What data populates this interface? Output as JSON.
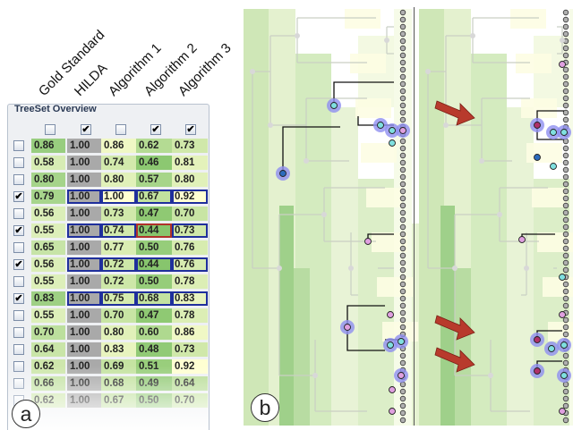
{
  "column_headers": [
    "Gold Standard",
    "HILDA",
    "Algorithm 1",
    "Algorithm 2",
    "Algorithm 3"
  ],
  "panel_title": "TreeSet Overview",
  "header_checks": [
    false,
    true,
    false,
    true,
    true
  ],
  "rows": [
    {
      "checked": false,
      "values": [
        "0.86",
        "1.00",
        "0.86",
        "0.62",
        "0.73"
      ]
    },
    {
      "checked": false,
      "values": [
        "0.58",
        "1.00",
        "0.74",
        "0.46",
        "0.81"
      ]
    },
    {
      "checked": false,
      "values": [
        "0.80",
        "1.00",
        "0.80",
        "0.57",
        "0.80"
      ]
    },
    {
      "checked": true,
      "values": [
        "0.79",
        "1.00",
        "1.00",
        "0.67",
        "0.92"
      ]
    },
    {
      "checked": false,
      "values": [
        "0.56",
        "1.00",
        "0.73",
        "0.47",
        "0.70"
      ]
    },
    {
      "checked": true,
      "values": [
        "0.55",
        "1.00",
        "0.74",
        "0.44",
        "0.73"
      ]
    },
    {
      "checked": false,
      "values": [
        "0.65",
        "1.00",
        "0.77",
        "0.50",
        "0.76"
      ]
    },
    {
      "checked": true,
      "values": [
        "0.56",
        "1.00",
        "0.72",
        "0.44",
        "0.76"
      ]
    },
    {
      "checked": false,
      "values": [
        "0.55",
        "1.00",
        "0.72",
        "0.50",
        "0.78"
      ]
    },
    {
      "checked": true,
      "values": [
        "0.83",
        "1.00",
        "0.75",
        "0.68",
        "0.83"
      ]
    },
    {
      "checked": false,
      "values": [
        "0.55",
        "1.00",
        "0.70",
        "0.47",
        "0.78"
      ]
    },
    {
      "checked": false,
      "values": [
        "0.70",
        "1.00",
        "0.80",
        "0.60",
        "0.86"
      ]
    },
    {
      "checked": false,
      "values": [
        "0.64",
        "1.00",
        "0.83",
        "0.48",
        "0.73"
      ]
    },
    {
      "checked": false,
      "values": [
        "0.62",
        "1.00",
        "0.69",
        "0.51",
        "0.92"
      ]
    },
    {
      "checked": false,
      "values": [
        "0.66",
        "1.00",
        "0.68",
        "0.49",
        "0.64"
      ]
    },
    {
      "checked": false,
      "values": [
        "0.62",
        "1.00",
        "0.67",
        "0.50",
        "0.70"
      ]
    }
  ],
  "labels": {
    "a": "a",
    "b": "b"
  },
  "colors": {
    "hilda_gray": "#a9a9a9",
    "highlight_blue": "#1f2f9c",
    "highlight_red": "#b0312a",
    "arrow_red": "#b83a2c",
    "node_halo": "#8e8ff0"
  }
}
